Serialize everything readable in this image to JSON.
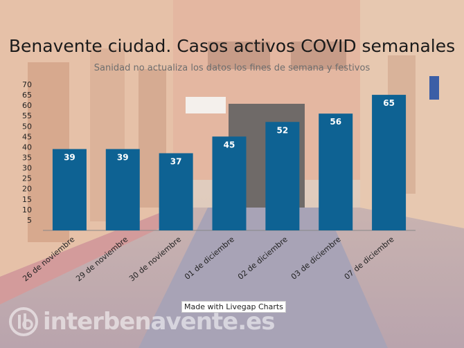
{
  "header": {
    "title": "Benavente ciudad. Casos activos COVID semanales",
    "subtitle": "Sanidad no actualiza los datos los fines de semana y festivos"
  },
  "credit": "Made with Livegap Charts",
  "watermark": {
    "text": "interbenavente.es",
    "logo_icon": "ib-logo-icon"
  },
  "colors": {
    "bar": "#0e6293",
    "label": "#ffffff",
    "axis": "#222222"
  },
  "chart_data": {
    "type": "bar",
    "title": "Benavente ciudad. Casos activos COVID semanales",
    "subtitle": "Sanidad no actualiza los datos los fines de semana y festivos",
    "categories": [
      "26 de noviembre",
      "29 de noviembre",
      "30 de noviembre",
      "01 de diciembre",
      "02 de diciembre",
      "03 de diciembre",
      "07 de diciembre"
    ],
    "values": [
      39,
      39,
      37,
      45,
      52,
      56,
      65
    ],
    "yticks": [
      5,
      10,
      15,
      20,
      25,
      30,
      35,
      40,
      45,
      50,
      55,
      60,
      65,
      70
    ],
    "ylim": [
      0,
      70
    ],
    "xlabel": "",
    "ylabel": "",
    "grid": false,
    "data_labels": true
  }
}
